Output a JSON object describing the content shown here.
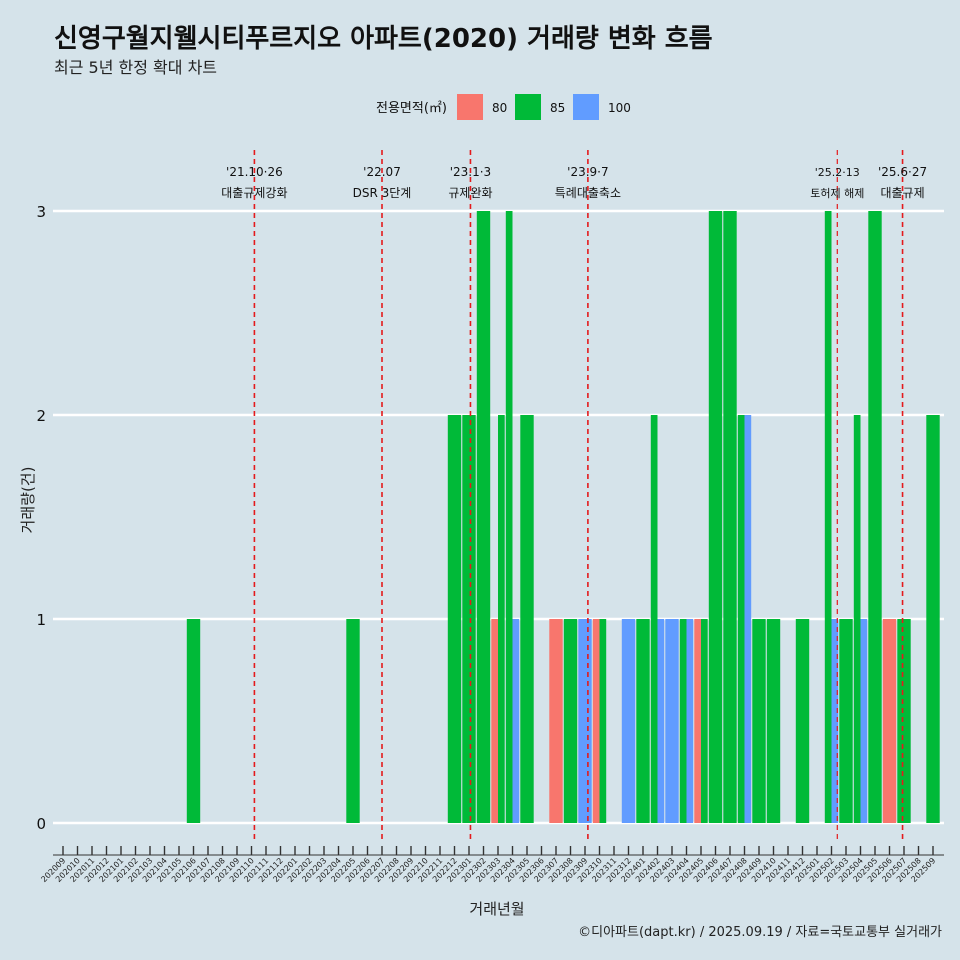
{
  "title": "신영구월지웰시티푸르지오 아파트(2020) 거래량 변화 흐름",
  "subtitle": "최근 5년 한정 확대 차트",
  "caption": "©디아파트(dapt.kr) / 2025.09.19 / 자료=국토교통부 실거래가",
  "colors": {
    "background": "#d5e3ea",
    "grid": "#ffffff",
    "event_line": "#e41a1c",
    "s80": "#f8766d",
    "s85": "#00ba38",
    "s100": "#619cff"
  },
  "chart_data": {
    "type": "bar",
    "title": "신영구월지웰시티푸르지오 아파트(2020) 거래량 변화 흐름",
    "xlabel": "거래년월",
    "ylabel": "거래량(건)",
    "ylim": [
      0,
      3
    ],
    "y_ticks": [
      "0",
      "1",
      "2",
      "3"
    ],
    "legend": {
      "title": "전용면적(㎡)",
      "position": "top",
      "items": [
        {
          "label": "80",
          "key": "s80"
        },
        {
          "label": "85",
          "key": "s85"
        },
        {
          "label": "100",
          "key": "s100"
        }
      ]
    },
    "months": [
      "202009",
      "202010",
      "202011",
      "202012",
      "202101",
      "202102",
      "202103",
      "202104",
      "202105",
      "202106",
      "202107",
      "202108",
      "202109",
      "202110",
      "202111",
      "202112",
      "202201",
      "202202",
      "202203",
      "202204",
      "202205",
      "202206",
      "202207",
      "202208",
      "202209",
      "202210",
      "202211",
      "202212",
      "202301",
      "202302",
      "202303",
      "202304",
      "202305",
      "202306",
      "202307",
      "202308",
      "202309",
      "202310",
      "202311",
      "202312",
      "202401",
      "202402",
      "202403",
      "202404",
      "202405",
      "202406",
      "202407",
      "202408",
      "202409",
      "202410",
      "202411",
      "202412",
      "202501",
      "202502",
      "202503",
      "202504",
      "202505",
      "202506",
      "202507",
      "202508",
      "202509"
    ],
    "tick_labels": [
      "202009",
      "202010",
      "202011",
      "202012",
      "202101",
      "202102",
      "202103",
      "202104",
      "202105",
      "202106",
      "202107",
      "202108",
      "202109",
      "202110",
      "202111",
      "202112",
      "202201",
      "202202",
      "202203",
      "202204",
      "202205",
      "202206",
      "202207",
      "202208",
      "202209",
      "202210",
      "202211",
      "202212",
      "202301",
      "202302",
      "202303",
      "202304",
      "202305",
      "202306",
      "202307",
      "202308",
      "202309",
      "202310",
      "202311",
      "202312",
      "202401",
      "202402",
      "202403",
      "202404",
      "202405",
      "202406",
      "202407",
      "202408",
      "202409",
      "202410",
      "202411",
      "202412",
      "202501",
      "202502",
      "202503",
      "202504",
      "202505",
      "202506",
      "202507",
      "202508",
      "202509"
    ],
    "series": [
      {
        "name": "85",
        "month": "202106",
        "value": 1
      },
      {
        "name": "85",
        "month": "202205",
        "value": 1
      },
      {
        "name": "85",
        "month": "202212",
        "value": 2
      },
      {
        "name": "85",
        "month": "202301",
        "value": 2
      },
      {
        "name": "85",
        "month": "202302",
        "value": 3
      },
      {
        "name": "80",
        "month": "202303",
        "value": 1
      },
      {
        "name": "85",
        "month": "202303",
        "value": 2
      },
      {
        "name": "85",
        "month": "202304",
        "value": 3
      },
      {
        "name": "100",
        "month": "202304",
        "value": 1
      },
      {
        "name": "85",
        "month": "202305",
        "value": 2
      },
      {
        "name": "80",
        "month": "202307",
        "value": 1
      },
      {
        "name": "85",
        "month": "202308",
        "value": 1
      },
      {
        "name": "100",
        "month": "202309",
        "value": 1
      },
      {
        "name": "80",
        "month": "202310",
        "value": 1
      },
      {
        "name": "85",
        "month": "202310",
        "value": 1
      },
      {
        "name": "100",
        "month": "202312",
        "value": 1
      },
      {
        "name": "85",
        "month": "202401",
        "value": 1
      },
      {
        "name": "85",
        "month": "202402",
        "value": 2
      },
      {
        "name": "100",
        "month": "202402",
        "value": 1
      },
      {
        "name": "100",
        "month": "202403",
        "value": 1
      },
      {
        "name": "85",
        "month": "202404",
        "value": 1
      },
      {
        "name": "100",
        "month": "202404",
        "value": 1
      },
      {
        "name": "80",
        "month": "202405",
        "value": 1
      },
      {
        "name": "85",
        "month": "202405",
        "value": 1
      },
      {
        "name": "85",
        "month": "202406",
        "value": 3
      },
      {
        "name": "85",
        "month": "202407",
        "value": 3
      },
      {
        "name": "85",
        "month": "202408",
        "value": 2
      },
      {
        "name": "100",
        "month": "202408",
        "value": 2
      },
      {
        "name": "85",
        "month": "202409",
        "value": 1
      },
      {
        "name": "85",
        "month": "202410",
        "value": 1
      },
      {
        "name": "85",
        "month": "202412",
        "value": 1
      },
      {
        "name": "85",
        "month": "202502",
        "value": 3
      },
      {
        "name": "100",
        "month": "202502",
        "value": 1
      },
      {
        "name": "85",
        "month": "202503",
        "value": 1
      },
      {
        "name": "85",
        "month": "202504",
        "value": 2
      },
      {
        "name": "100",
        "month": "202504",
        "value": 1
      },
      {
        "name": "85",
        "month": "202505",
        "value": 3
      },
      {
        "name": "80",
        "month": "202506",
        "value": 1
      },
      {
        "name": "85",
        "month": "202507",
        "value": 1
      },
      {
        "name": "85",
        "month": "202509",
        "value": 2
      }
    ],
    "events": [
      {
        "month": "202110",
        "offset": 0.2,
        "date": "'21.10·26",
        "label": "대출규제강화",
        "small": false
      },
      {
        "month": "202207",
        "offset": 0.0,
        "date": "'22.07",
        "label": "DSR 3단계",
        "small": false
      },
      {
        "month": "202301",
        "offset": 0.1,
        "date": "'23.1·3",
        "label": "규제완화",
        "small": false
      },
      {
        "month": "202309",
        "offset": 0.2,
        "date": "'23.9·7",
        "label": "특례대출축소",
        "small": false
      },
      {
        "month": "202502",
        "offset": 0.4,
        "date": "'25.2·13",
        "label": "토허제 해제",
        "small": true
      },
      {
        "month": "202506",
        "offset": 0.9,
        "date": "'25.6·27",
        "label": "대출규제",
        "small": false
      }
    ]
  }
}
